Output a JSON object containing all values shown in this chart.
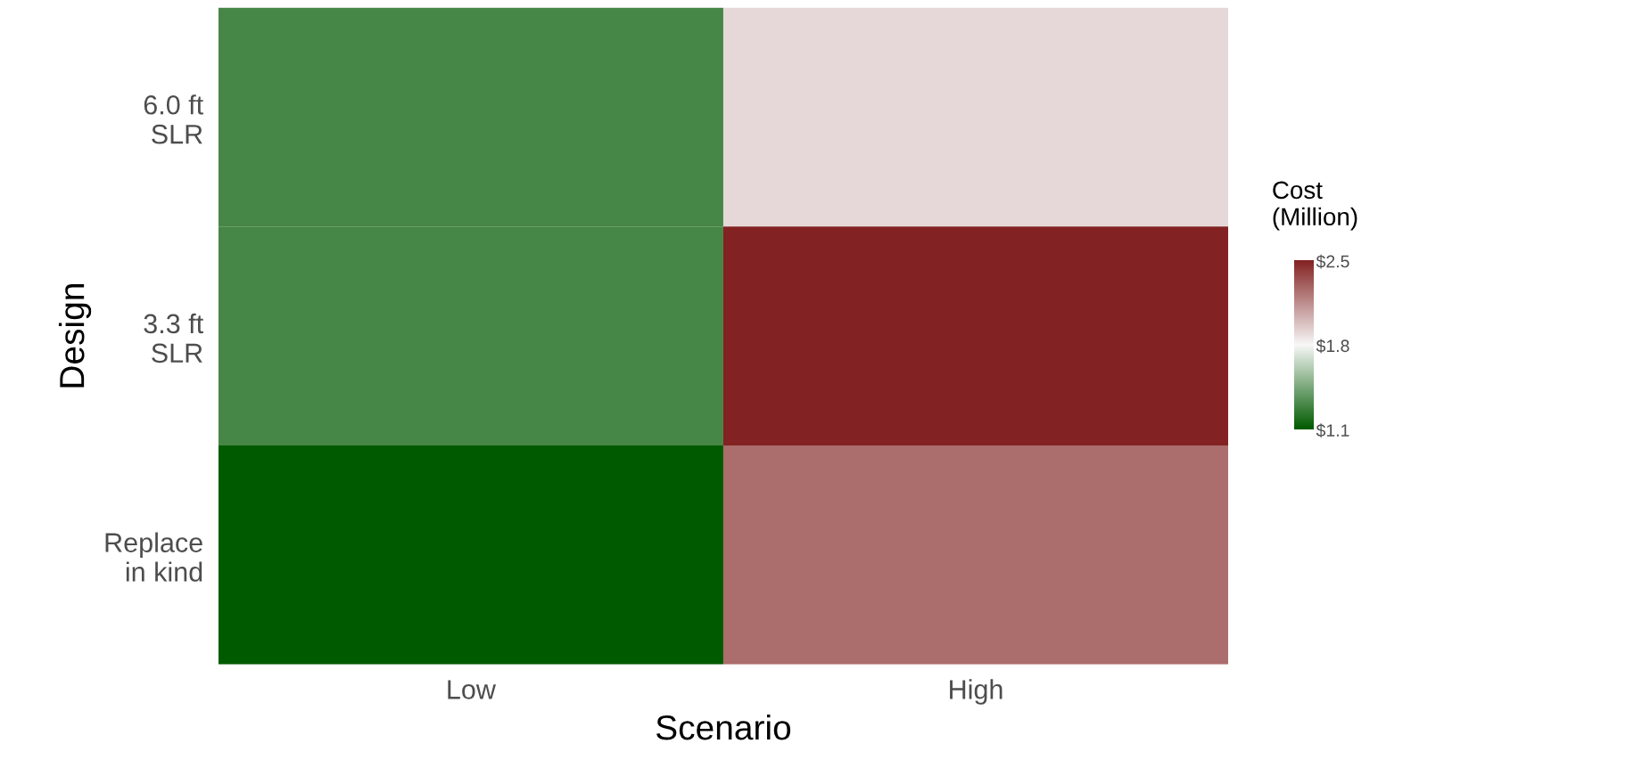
{
  "chart_data": {
    "type": "heatmap",
    "xlabel": "Scenario",
    "ylabel": "Design",
    "clabel": "Cost\n(Million)",
    "categories": [
      "Low",
      "High"
    ],
    "y_categories": [
      "6.0 ft\nSLR",
      "3.3 ft\nSLR",
      "Replace\nin kind"
    ],
    "cells": [
      [
        1.3,
        1.9
      ],
      [
        1.3,
        2.5
      ],
      [
        1.1,
        2.25
      ]
    ],
    "colors": [
      "#005a00",
      "#f7f7f7",
      "#832222"
    ],
    "clim": [
      1.1,
      2.5
    ],
    "cticks": [
      {
        "value": 1.1,
        "label": "$1.1"
      },
      {
        "value": 1.8,
        "label": "$1.8"
      },
      {
        "value": 2.5,
        "label": "$2.5"
      }
    ]
  }
}
